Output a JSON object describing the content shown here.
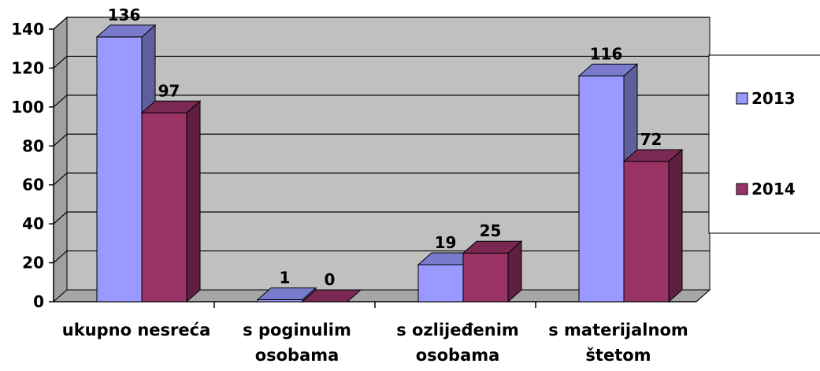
{
  "chart_data": {
    "type": "bar",
    "three_d": true,
    "categories": [
      [
        "ukupno nesreća"
      ],
      [
        "s poginulim",
        "osobama"
      ],
      [
        "s ozlijeđenim",
        "osobama"
      ],
      [
        "s materijalnom",
        "štetom"
      ]
    ],
    "series": [
      {
        "name": "2013",
        "values": [
          136,
          1,
          19,
          116
        ],
        "color": "#9999ff"
      },
      {
        "name": "2014",
        "values": [
          97,
          0,
          25,
          72
        ],
        "color": "#993366"
      }
    ],
    "data_labels": [
      [
        "136",
        "1",
        "19",
        "116"
      ],
      [
        "97",
        "0",
        "25",
        "72"
      ]
    ],
    "ylim": [
      0,
      140
    ],
    "yticks": [
      "0",
      "20",
      "40",
      "60",
      "80",
      "100",
      "120",
      "140"
    ],
    "grid": true,
    "legend_position": "right",
    "title": "",
    "xlabel": "",
    "ylabel": ""
  },
  "colors": {
    "wall": "#c0c0c0",
    "floor": "#a6a6a6",
    "side_wall": "#a0a0a0",
    "grid": "#000000"
  }
}
